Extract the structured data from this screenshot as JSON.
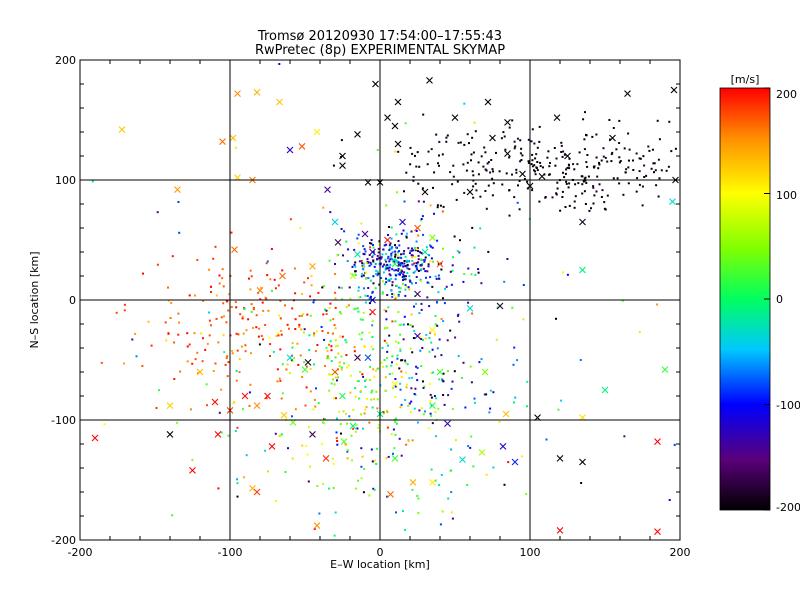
{
  "chart_data": {
    "type": "scatter",
    "title": "Tromsø 20120930 17:54:00–17:55:43",
    "subtitle": "RwPretec (8p) EXPERIMENTAL SKYMAP",
    "xlabel": "E–W location [km]",
    "ylabel": "N–S location [km]",
    "xlim": [
      -200,
      200
    ],
    "ylim": [
      -200,
      200
    ],
    "xticks": [
      "-200",
      "-100",
      "0",
      "100",
      "200"
    ],
    "yticks": [
      "-200",
      "-100",
      "0",
      "100",
      "200"
    ],
    "grid": true,
    "colorbar": {
      "label": "[m/s]",
      "min": -200,
      "max": 200,
      "ticks": [
        "200",
        "100",
        "0",
        "-100",
        "-200"
      ]
    },
    "series": [
      {
        "marker": "x",
        "points": [
          [
            -172,
            142
          ],
          [
            -105,
            132
          ],
          [
            -98,
            135
          ],
          [
            -95,
            172
          ],
          [
            -82,
            173
          ],
          [
            -67,
            165
          ],
          [
            -42,
            140
          ],
          [
            -52,
            128
          ],
          [
            -60,
            125
          ],
          [
            -85,
            100
          ],
          [
            -135,
            92
          ],
          [
            -97,
            42
          ],
          [
            -65,
            20
          ],
          [
            -80,
            8
          ],
          [
            -45,
            28
          ],
          [
            -30,
            65
          ],
          [
            -28,
            48
          ],
          [
            -18,
            20
          ],
          [
            -120,
            -60
          ],
          [
            -100,
            -92
          ],
          [
            -108,
            -112
          ],
          [
            -125,
            -142
          ],
          [
            -140,
            -112
          ],
          [
            -190,
            -115
          ],
          [
            -82,
            -88
          ],
          [
            -75,
            -80
          ],
          [
            -72,
            -122
          ],
          [
            -64,
            -96
          ],
          [
            -58,
            -102
          ],
          [
            -45,
            -112
          ],
          [
            -42,
            -188
          ],
          [
            -82,
            -160
          ],
          [
            -85,
            -157
          ],
          [
            -36,
            -132
          ],
          [
            -24,
            -118
          ],
          [
            -18,
            -105
          ],
          [
            -15,
            -48
          ],
          [
            -5,
            -10
          ],
          [
            0,
            -95
          ],
          [
            10,
            -132
          ],
          [
            7,
            -162
          ],
          [
            22,
            -152
          ],
          [
            35,
            -152
          ],
          [
            45,
            -103
          ],
          [
            55,
            -133
          ],
          [
            68,
            -127
          ],
          [
            82,
            -122
          ],
          [
            84,
            -95
          ],
          [
            105,
            -98
          ],
          [
            120,
            -132
          ],
          [
            135,
            -135
          ],
          [
            120,
            -192
          ],
          [
            185,
            -193
          ],
          [
            185,
            -118
          ],
          [
            190,
            -58
          ],
          [
            150,
            -75
          ],
          [
            135,
            -98
          ],
          [
            25,
            -30
          ],
          [
            -30,
            -60
          ],
          [
            -8,
            -48
          ],
          [
            -48,
            -52
          ],
          [
            -50,
            -58
          ],
          [
            -60,
            -48
          ],
          [
            -25,
            -80
          ],
          [
            10,
            -70
          ],
          [
            40,
            -60
          ],
          [
            35,
            -25
          ],
          [
            60,
            -7
          ],
          [
            80,
            -5
          ],
          [
            135,
            25
          ],
          [
            135,
            65
          ],
          [
            -110,
            -85
          ],
          [
            -90,
            -80
          ],
          [
            -10,
            55
          ],
          [
            5,
            50
          ],
          [
            15,
            65
          ],
          [
            25,
            60
          ],
          [
            35,
            52
          ],
          [
            -5,
            40
          ],
          [
            -15,
            38
          ],
          [
            30,
            40
          ],
          [
            10,
            30
          ],
          [
            40,
            30
          ],
          [
            -25,
            120
          ],
          [
            -15,
            138
          ],
          [
            5,
            152
          ],
          [
            -8,
            98
          ],
          [
            0,
            98
          ],
          [
            12,
            130
          ],
          [
            10,
            145
          ],
          [
            12,
            165
          ],
          [
            33,
            183
          ],
          [
            50,
            152
          ],
          [
            72,
            165
          ],
          [
            85,
            148
          ],
          [
            85,
            122
          ],
          [
            95,
            105
          ],
          [
            108,
            103
          ],
          [
            118,
            152
          ],
          [
            125,
            120
          ],
          [
            155,
            135
          ],
          [
            165,
            172
          ],
          [
            196,
            175
          ],
          [
            195,
            82
          ],
          [
            197,
            100
          ],
          [
            -3,
            180
          ],
          [
            -25,
            112
          ],
          [
            -35,
            92
          ],
          [
            100,
            95
          ],
          [
            75,
            135
          ],
          [
            30,
            90
          ],
          [
            60,
            90
          ],
          [
            -95,
            102
          ],
          [
            -140,
            -88
          ],
          [
            90,
            -135
          ],
          [
            35,
            -88
          ],
          [
            70,
            -60
          ],
          [
            25,
            5
          ],
          [
            -5,
            0
          ]
        ]
      },
      {
        "marker": "dot",
        "count": 1500,
        "clusters": [
          {
            "cx": 120,
            "cy": 110,
            "sx": 55,
            "sy": 18,
            "n": 330,
            "vmean": -195,
            "vsd": 10
          },
          {
            "cx": 10,
            "cy": 30,
            "sx": 16,
            "sy": 13,
            "n": 330,
            "vmean": -95,
            "vsd": 55
          },
          {
            "cx": -88,
            "cy": -20,
            "sx": 35,
            "sy": 30,
            "n": 210,
            "vmean": 170,
            "vsd": 25
          },
          {
            "cx": -10,
            "cy": -60,
            "sx": 25,
            "sy": 45,
            "n": 260,
            "vmean": 70,
            "vsd": 55
          },
          {
            "cx": 30,
            "cy": -50,
            "sx": 25,
            "sy": 50,
            "n": 160,
            "vmean": -110,
            "vsd": 60
          },
          {
            "cx": 0,
            "cy": -130,
            "sx": 80,
            "sy": 45,
            "n": 110,
            "vmean": 0,
            "vsd": 120
          },
          {
            "cx": 0,
            "cy": 20,
            "sx": 120,
            "sy": 90,
            "n": 100,
            "vmean": 0,
            "vsd": 140
          }
        ]
      }
    ]
  }
}
